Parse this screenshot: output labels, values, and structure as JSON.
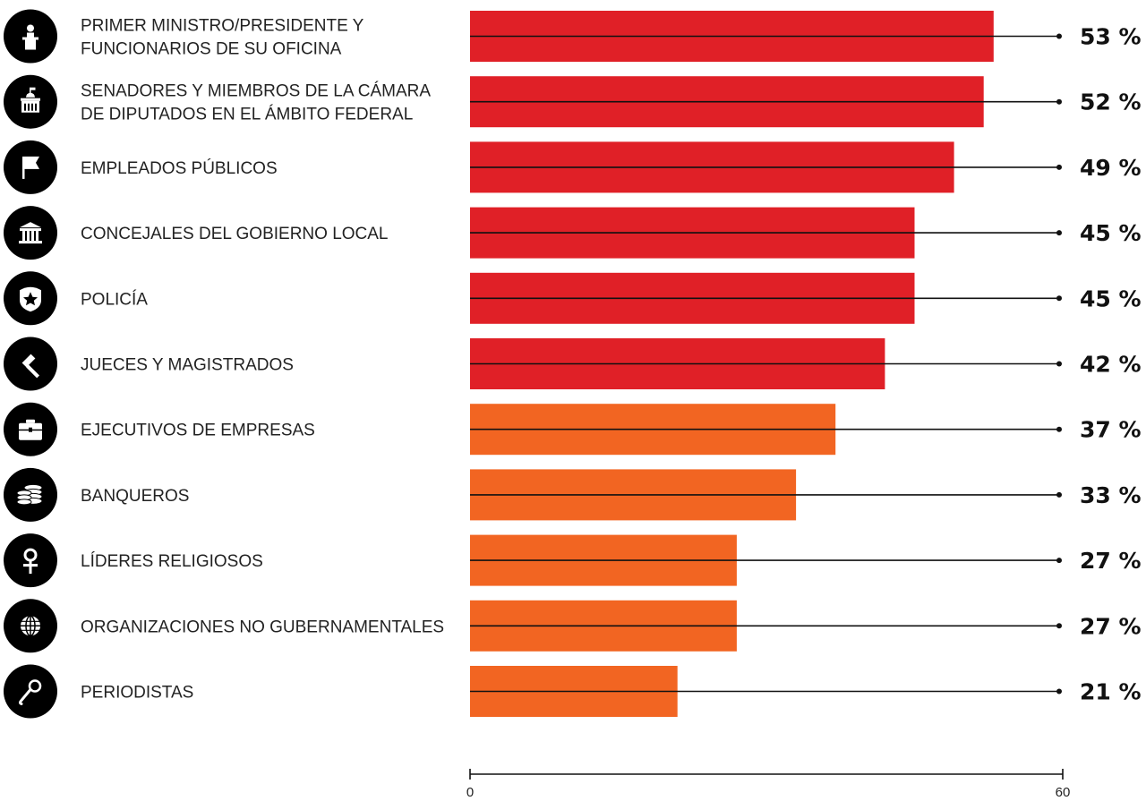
{
  "chart_data": {
    "type": "bar",
    "orientation": "horizontal",
    "categories": [
      "PRIMER MINISTRO/PRESIDENTE Y FUNCIONARIOS DE SU OFICINA",
      "SENADORES Y MIEMBROS DE LA CÁMARA DE DIPUTADOS EN EL ÁMBITO FEDERAL",
      "EMPLEADOS PÚBLICOS",
      "CONCEJALES DEL GOBIERNO LOCAL",
      "POLICÍA",
      "JUECES Y MAGISTRADOS",
      "EJECUTIVOS DE EMPRESAS",
      "BANQUEROS",
      "LÍDERES RELIGIOSOS",
      "ORGANIZACIONES NO GUBERNAMENTALES",
      "PERIODISTAS"
    ],
    "category_lines": [
      [
        "PRIMER MINISTRO/PRESIDENTE Y",
        "FUNCIONARIOS DE SU OFICINA"
      ],
      [
        "SENADORES Y MIEMBROS DE LA CÁMARA",
        "DE DIPUTADOS EN EL ÁMBITO FEDERAL"
      ],
      [
        "EMPLEADOS PÚBLICOS"
      ],
      [
        "CONCEJALES DEL GOBIERNO LOCAL"
      ],
      [
        "POLICÍA"
      ],
      [
        "JUECES Y MAGISTRADOS"
      ],
      [
        "EJECUTIVOS DE EMPRESAS"
      ],
      [
        "BANQUEROS"
      ],
      [
        "LÍDERES RELIGIOSOS"
      ],
      [
        "ORGANIZACIONES NO GUBERNAMENTALES"
      ],
      [
        "PERIODISTAS"
      ]
    ],
    "values": [
      53,
      52,
      49,
      45,
      45,
      42,
      37,
      33,
      27,
      27,
      21
    ],
    "value_labels": [
      "53 %",
      "52 %",
      "49 %",
      "45 %",
      "45 %",
      "42 %",
      "37 %",
      "33 %",
      "27 %",
      "27 %",
      "21 %"
    ],
    "bar_colors": [
      "#e02027",
      "#e02027",
      "#e02027",
      "#e02027",
      "#e02027",
      "#e02027",
      "#f26522",
      "#f26522",
      "#f26522",
      "#f26522",
      "#f26522"
    ],
    "icons": [
      "podium-icon",
      "capitol-icon",
      "flag-icon",
      "town-hall-icon",
      "police-badge-icon",
      "gavel-icon",
      "briefcase-icon",
      "coins-icon",
      "religion-icon",
      "globe-icon",
      "microphone-icon"
    ],
    "xlim": [
      0,
      60
    ],
    "xticks": [
      "0",
      "60"
    ],
    "title": "",
    "xlabel": "",
    "ylabel": "",
    "grid": false,
    "legend": "none"
  }
}
